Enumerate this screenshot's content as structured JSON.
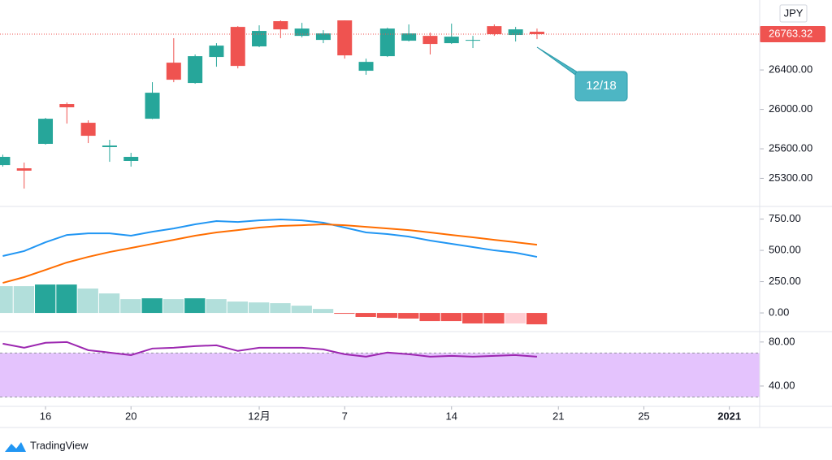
{
  "currency": "JPY",
  "annotation": "12/18",
  "brand": "TradingView",
  "chart_data": [
    {
      "type": "candlestick",
      "open": [
        25435,
        25402,
        25650,
        26054,
        25864,
        25617,
        25477,
        25905,
        26474,
        26268,
        26532,
        26837,
        26639,
        26895,
        26746,
        26705,
        26903,
        26392,
        26540,
        26697,
        26746,
        26672,
        26697,
        26845,
        26755,
        26788
      ],
      "high": [
        25540,
        25460,
        25914,
        26070,
        25889,
        25691,
        25559,
        26276,
        26722,
        26557,
        26672,
        26845,
        26853,
        26903,
        26878,
        26804,
        26903,
        26515,
        26829,
        26862,
        26779,
        26870,
        26746,
        26862,
        26837,
        26820
      ],
      "low": [
        25419,
        25196,
        25642,
        25856,
        25658,
        25468,
        25419,
        25901,
        26276,
        26260,
        26433,
        26416,
        26631,
        26722,
        26730,
        26672,
        26515,
        26351,
        26532,
        26689,
        26557,
        26664,
        26623,
        26746,
        26689,
        26713
      ],
      "close": [
        25518,
        25378,
        25905,
        26021,
        25732,
        25633,
        25518,
        26169,
        26301,
        26540,
        26647,
        26441,
        26796,
        26812,
        26820,
        26771,
        26548,
        26482,
        26820,
        26771,
        26664,
        26738,
        26705,
        26763,
        26812,
        26763.32
      ],
      "up_color": "#26a69a",
      "down_color": "#ef5350",
      "ylim": [
        25015,
        27110
      ],
      "yticks": [
        {
          "value": 25300,
          "label": "25300.00"
        },
        {
          "value": 25600,
          "label": "25600.00"
        },
        {
          "value": 26000,
          "label": "26000.00"
        },
        {
          "value": 26400,
          "label": "26400.00"
        }
      ],
      "xlim": [
        -0.13,
        35.42
      ],
      "xticks": [
        {
          "value": 2,
          "label": "16"
        },
        {
          "value": 6,
          "label": "20"
        },
        {
          "value": 12,
          "label": "12月"
        },
        {
          "value": 16,
          "label": "7"
        },
        {
          "value": 21,
          "label": "14"
        },
        {
          "value": 26,
          "label": "21"
        },
        {
          "value": 30,
          "label": "25"
        },
        {
          "value": 34,
          "label": "2021"
        }
      ]
    },
    {
      "type": "macd",
      "series": [
        {
          "color": "#2196f3",
          "values": [
            455,
            494,
            565,
            623,
            636,
            636,
            617,
            649,
            675,
            708,
            734,
            727,
            740,
            747,
            740,
            721,
            682,
            643,
            630,
            610,
            578,
            552,
            526,
            500,
            481,
            448
          ]
        },
        {
          "color": "#ff6d00",
          "values": [
            240,
            286,
            344,
            403,
            448,
            487,
            519,
            552,
            584,
            617,
            643,
            662,
            682,
            695,
            701,
            708,
            701,
            688,
            675,
            662,
            643,
            623,
            604,
            584,
            565,
            545
          ]
        }
      ],
      "histogram": {
        "values": [
          214,
          214,
          227,
          227,
          195,
          156,
          110,
          117,
          110,
          117,
          110,
          91,
          84,
          78,
          58,
          32,
          -6,
          -32,
          -39,
          -45,
          -65,
          -65,
          -84,
          -84,
          -84,
          -91
        ],
        "colors": [
          "#b2dfdb",
          "#b2dfdb",
          "#26a69a",
          "#26a69a",
          "#b2dfdb",
          "#b2dfdb",
          "#b2dfdb",
          "#26a69a",
          "#b2dfdb",
          "#26a69a",
          "#b2dfdb",
          "#b2dfdb",
          "#b2dfdb",
          "#b2dfdb",
          "#b2dfdb",
          "#b2dfdb",
          "#ef5350",
          "#ef5350",
          "#ef5350",
          "#ef5350",
          "#ef5350",
          "#ef5350",
          "#ef5350",
          "#ef5350",
          "#ffcdd2",
          "#ef5350"
        ]
      },
      "ylim": [
        -149,
        838
      ],
      "yticks": [
        {
          "value": 0,
          "label": "0.00"
        },
        {
          "value": 250,
          "label": "250.00"
        },
        {
          "value": 500,
          "label": "500.00"
        },
        {
          "value": 750,
          "label": "750.00"
        }
      ]
    },
    {
      "type": "rsi",
      "series": [
        {
          "color": "#9c27b0",
          "values": [
            78.5,
            74.8,
            79.3,
            80,
            72.6,
            70.4,
            68.1,
            74.1,
            74.8,
            76.3,
            77,
            71.9,
            74.8,
            74.8,
            74.8,
            73.3,
            68.9,
            66.7,
            70.4,
            68.9,
            66.7,
            67.4,
            66.7,
            67.4,
            68.1,
            66.7
          ]
        }
      ],
      "band": [
        30,
        70
      ],
      "band_color": "#e1bcfd",
      "ylim": [
        21.5,
        88
      ],
      "yticks": [
        {
          "value": 40,
          "label": "40.00"
        },
        {
          "value": 80,
          "label": "80.00"
        }
      ]
    }
  ]
}
